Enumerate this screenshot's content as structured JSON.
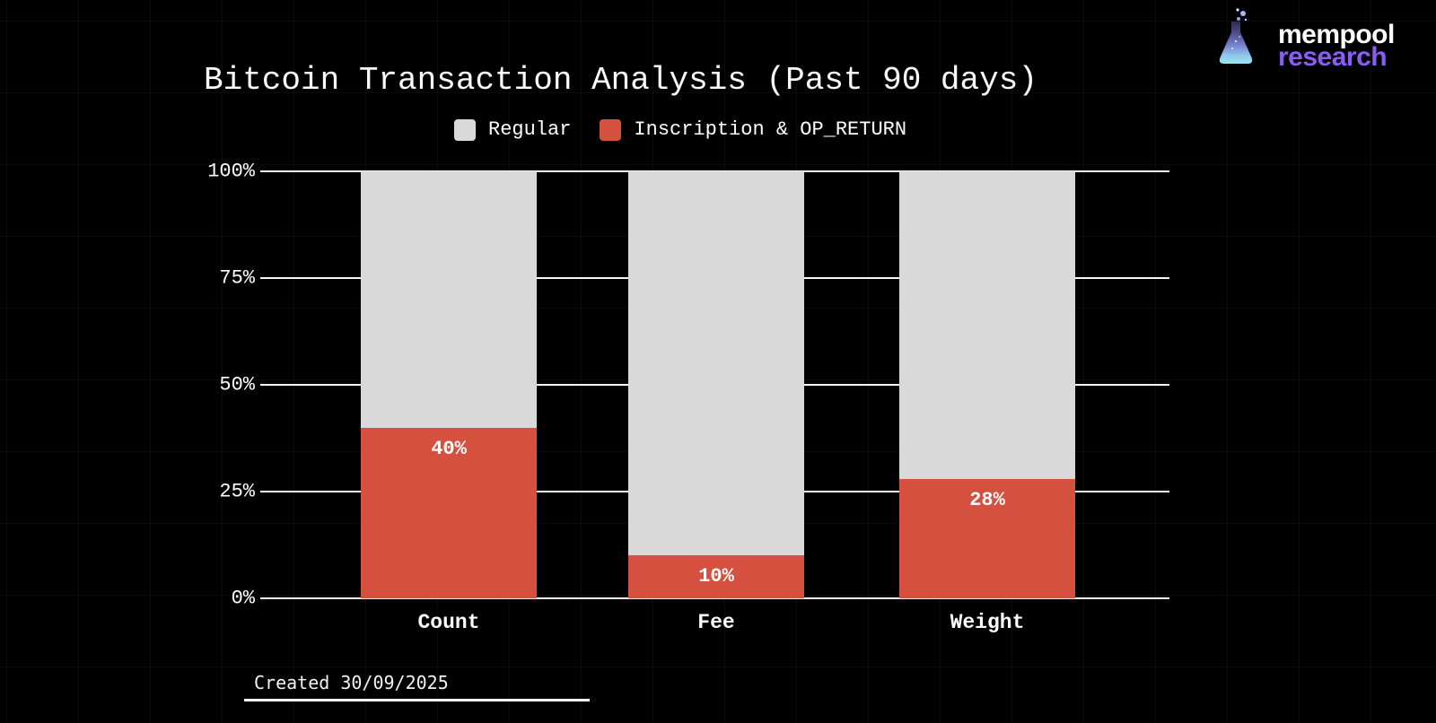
{
  "brand": {
    "line1": "mempool",
    "line2": "research",
    "line2_color": "#8b5cf6"
  },
  "chart_data": {
    "type": "bar",
    "stacked": true,
    "title": "Bitcoin Transaction Analysis (Past 90 days)",
    "categories": [
      "Count",
      "Fee",
      "Weight"
    ],
    "series": [
      {
        "name": "Regular",
        "color": "#d9d9d9",
        "values": [
          60,
          90,
          72
        ]
      },
      {
        "name": "Inscription & OP_RETURN",
        "color": "#d5503e",
        "values": [
          40,
          10,
          28
        ]
      }
    ],
    "bar_value_labels": [
      "40%",
      "10%",
      "28%"
    ],
    "y_ticks": [
      "100%",
      "75%",
      "50%",
      "25%",
      "0%"
    ],
    "ylim": [
      0,
      100
    ],
    "grid": true,
    "legend_position": "top",
    "background": "#000000",
    "text_color": "#ffffff"
  },
  "footer": {
    "created": "Created 30/09/2025"
  }
}
